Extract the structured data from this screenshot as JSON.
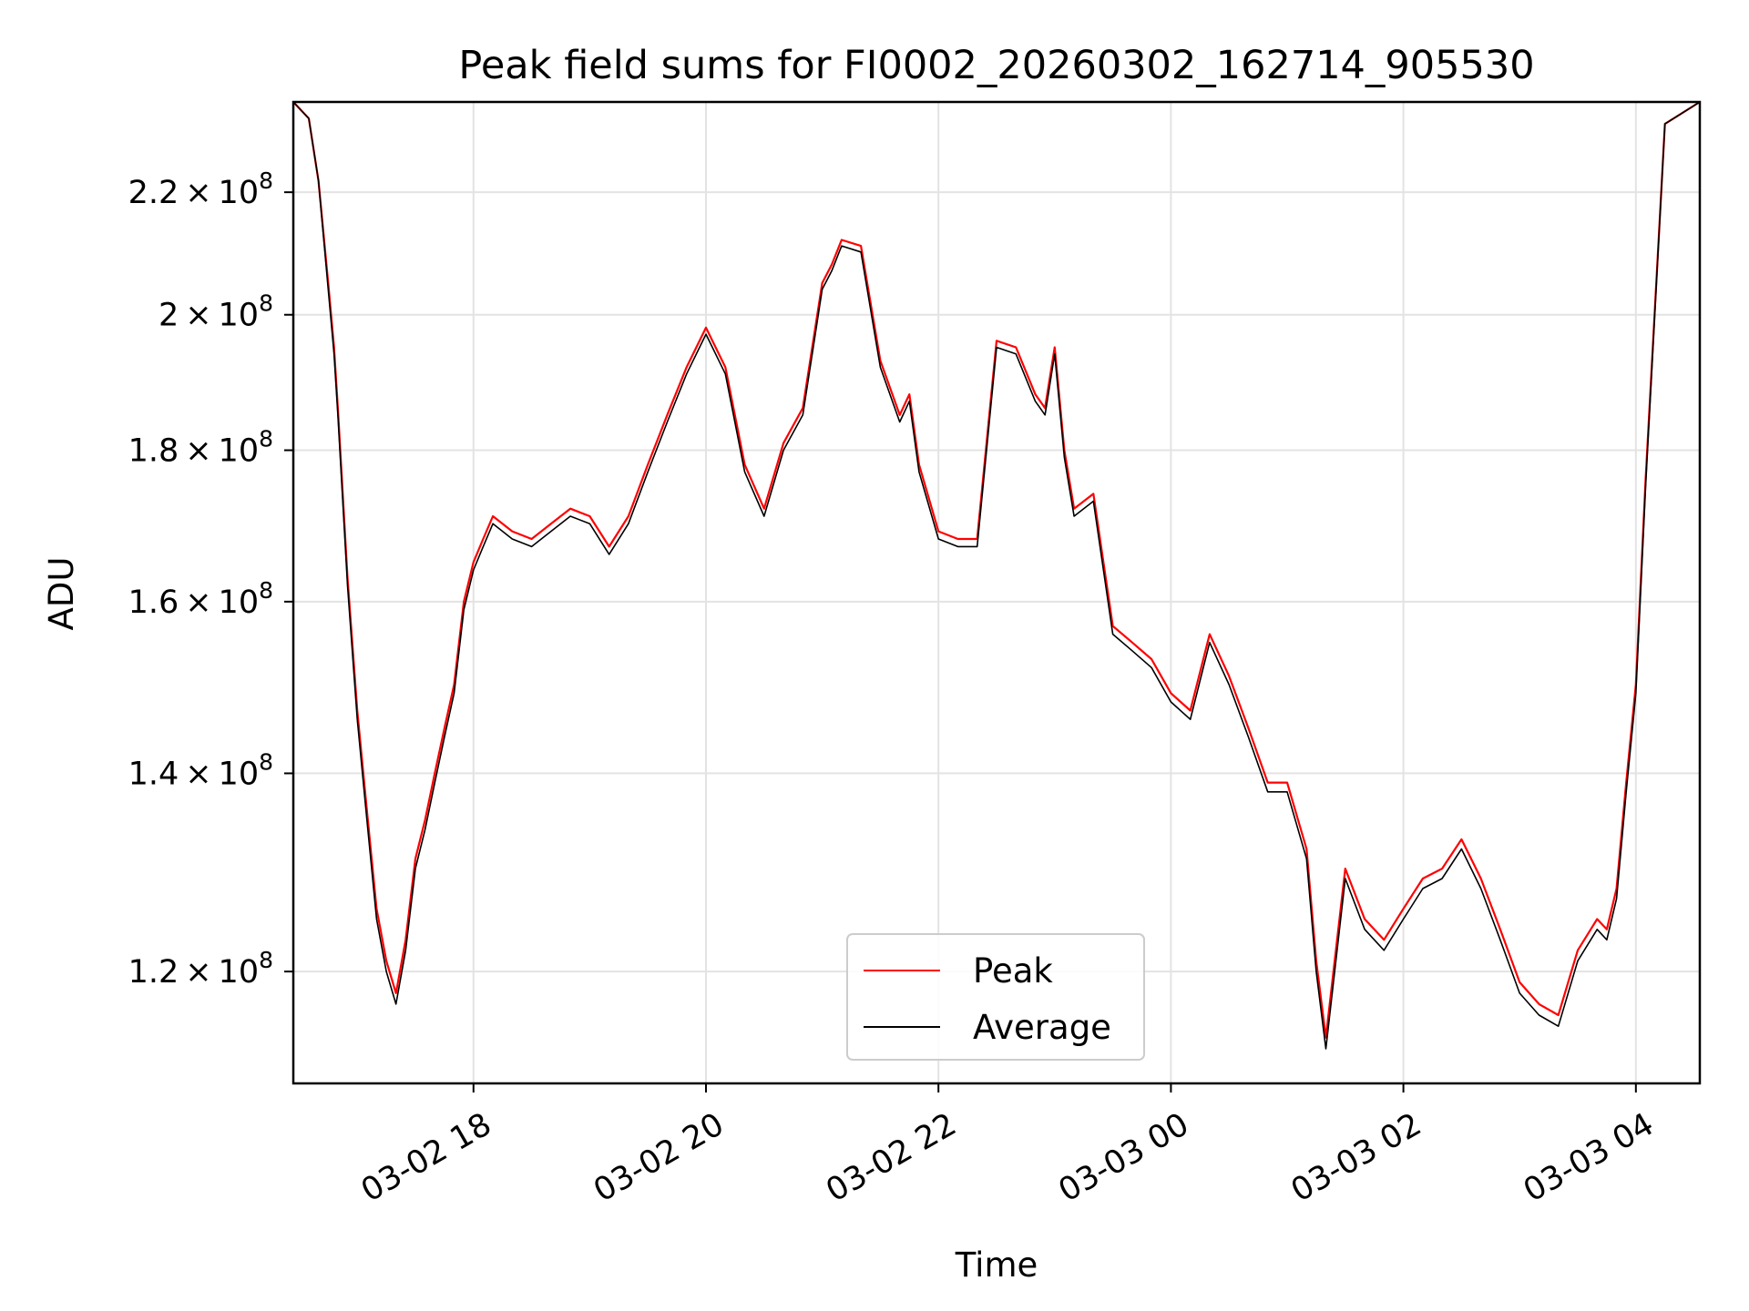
{
  "chart_data": {
    "type": "line",
    "title": "Peak field sums for FI0002_20260302_162714_905530",
    "xlabel": "Time",
    "ylabel": "ADU",
    "y_scale": "log",
    "xlim": [
      "2026-03-02 16:27",
      "2026-03-03 04:33"
    ],
    "ylim": [
      110000000,
      236000000
    ],
    "grid": true,
    "legend_position": "lower-center",
    "x_ticks": [
      {
        "value": "2026-03-02 18:00",
        "label": "03-02 18"
      },
      {
        "value": "2026-03-02 20:00",
        "label": "03-02 20"
      },
      {
        "value": "2026-03-02 22:00",
        "label": "03-02 22"
      },
      {
        "value": "2026-03-03 00:00",
        "label": "03-03 00"
      },
      {
        "value": "2026-03-03 02:00",
        "label": "03-03 02"
      },
      {
        "value": "2026-03-03 04:00",
        "label": "03-03 04"
      }
    ],
    "y_ticks": [
      {
        "value": 120000000,
        "mant": "1.2",
        "exp": "8"
      },
      {
        "value": 140000000,
        "mant": "1.4",
        "exp": "8"
      },
      {
        "value": 160000000,
        "mant": "1.6",
        "exp": "8"
      },
      {
        "value": 180000000,
        "mant": "1.8",
        "exp": "8"
      },
      {
        "value": 200000000,
        "mant": "2",
        "exp": "8"
      },
      {
        "value": 220000000,
        "mant": "2.2",
        "exp": "8"
      }
    ],
    "x": [
      "2026-03-02 16:27",
      "2026-03-02 16:35",
      "2026-03-02 16:40",
      "2026-03-02 16:45",
      "2026-03-02 16:48",
      "2026-03-02 16:50",
      "2026-03-02 16:55",
      "2026-03-02 17:00",
      "2026-03-02 17:05",
      "2026-03-02 17:10",
      "2026-03-02 17:15",
      "2026-03-02 17:20",
      "2026-03-02 17:25",
      "2026-03-02 17:30",
      "2026-03-02 17:35",
      "2026-03-02 17:40",
      "2026-03-02 17:45",
      "2026-03-02 17:50",
      "2026-03-02 17:55",
      "2026-03-02 18:00",
      "2026-03-02 18:05",
      "2026-03-02 18:10",
      "2026-03-02 18:20",
      "2026-03-02 18:30",
      "2026-03-02 18:40",
      "2026-03-02 18:50",
      "2026-03-02 19:00",
      "2026-03-02 19:10",
      "2026-03-02 19:20",
      "2026-03-02 19:30",
      "2026-03-02 19:40",
      "2026-03-02 19:50",
      "2026-03-02 20:00",
      "2026-03-02 20:10",
      "2026-03-02 20:20",
      "2026-03-02 20:30",
      "2026-03-02 20:40",
      "2026-03-02 20:50",
      "2026-03-02 21:00",
      "2026-03-02 21:05",
      "2026-03-02 21:10",
      "2026-03-02 21:20",
      "2026-03-02 21:30",
      "2026-03-02 21:40",
      "2026-03-02 21:45",
      "2026-03-02 21:50",
      "2026-03-02 22:00",
      "2026-03-02 22:10",
      "2026-03-02 22:20",
      "2026-03-02 22:30",
      "2026-03-02 22:40",
      "2026-03-02 22:50",
      "2026-03-02 22:55",
      "2026-03-02 23:00",
      "2026-03-02 23:05",
      "2026-03-02 23:10",
      "2026-03-02 23:20",
      "2026-03-02 23:30",
      "2026-03-02 23:40",
      "2026-03-02 23:50",
      "2026-03-03 00:00",
      "2026-03-03 00:10",
      "2026-03-03 00:20",
      "2026-03-03 00:30",
      "2026-03-03 00:40",
      "2026-03-03 00:50",
      "2026-03-03 01:00",
      "2026-03-03 01:10",
      "2026-03-03 01:15",
      "2026-03-03 01:20",
      "2026-03-03 01:30",
      "2026-03-03 01:40",
      "2026-03-03 01:50",
      "2026-03-03 02:00",
      "2026-03-03 02:10",
      "2026-03-03 02:20",
      "2026-03-03 02:30",
      "2026-03-03 02:40",
      "2026-03-03 02:50",
      "2026-03-03 03:00",
      "2026-03-03 03:10",
      "2026-03-03 03:20",
      "2026-03-03 03:30",
      "2026-03-03 03:40",
      "2026-03-03 03:45",
      "2026-03-03 03:50",
      "2026-03-03 03:55",
      "2026-03-03 04:00",
      "2026-03-03 04:05",
      "2026-03-03 04:15",
      "2026-03-03 04:33"
    ],
    "series": [
      {
        "name": "Peak",
        "color": "#ff0000",
        "values": [
          236000000,
          233000000,
          222000000,
          205000000,
          195000000,
          186000000,
          163000000,
          147000000,
          136000000,
          126000000,
          121000000,
          118000000,
          123000000,
          131000000,
          135000000,
          140000000,
          145000000,
          150000000,
          160000000,
          165000000,
          168000000,
          171000000,
          169000000,
          168000000,
          170000000,
          172000000,
          171000000,
          167000000,
          171000000,
          178000000,
          185000000,
          192000000,
          198000000,
          192000000,
          178000000,
          172000000,
          181000000,
          186000000,
          205000000,
          208000000,
          212000000,
          211000000,
          193000000,
          185000000,
          188000000,
          178000000,
          169000000,
          168000000,
          168000000,
          196000000,
          195000000,
          188000000,
          186000000,
          195000000,
          180000000,
          172000000,
          174000000,
          157000000,
          155000000,
          153000000,
          149000000,
          147000000,
          156000000,
          151000000,
          145000000,
          139000000,
          139000000,
          132000000,
          121000000,
          114000000,
          130000000,
          125000000,
          123000000,
          126000000,
          129000000,
          130000000,
          133000000,
          129000000,
          124000000,
          119000000,
          117000000,
          116000000,
          122000000,
          125000000,
          124000000,
          128000000,
          139000000,
          150000000,
          176000000,
          232000000,
          236000000
        ]
      },
      {
        "name": "Average",
        "color": "#000000",
        "values": [
          236000000,
          233000000,
          222000000,
          204000000,
          194000000,
          185000000,
          162000000,
          146000000,
          135000000,
          125000000,
          120000000,
          117000000,
          122000000,
          130000000,
          134000000,
          139000000,
          144000000,
          149000000,
          159000000,
          164000000,
          167000000,
          170000000,
          168000000,
          167000000,
          169000000,
          171000000,
          170000000,
          166000000,
          170000000,
          177000000,
          184000000,
          191000000,
          197000000,
          191000000,
          177000000,
          171000000,
          180000000,
          185000000,
          204000000,
          207000000,
          211000000,
          210000000,
          192000000,
          184000000,
          187000000,
          177000000,
          168000000,
          167000000,
          167000000,
          195000000,
          194000000,
          187000000,
          185000000,
          194000000,
          179000000,
          171000000,
          173000000,
          156000000,
          154000000,
          152000000,
          148000000,
          146000000,
          155000000,
          150000000,
          144000000,
          138000000,
          138000000,
          131000000,
          120000000,
          113000000,
          129000000,
          124000000,
          122000000,
          125000000,
          128000000,
          129000000,
          132000000,
          128000000,
          123000000,
          118000000,
          116000000,
          115000000,
          121000000,
          124000000,
          123000000,
          127000000,
          138000000,
          149000000,
          175000000,
          232000000,
          236000000
        ]
      }
    ]
  }
}
